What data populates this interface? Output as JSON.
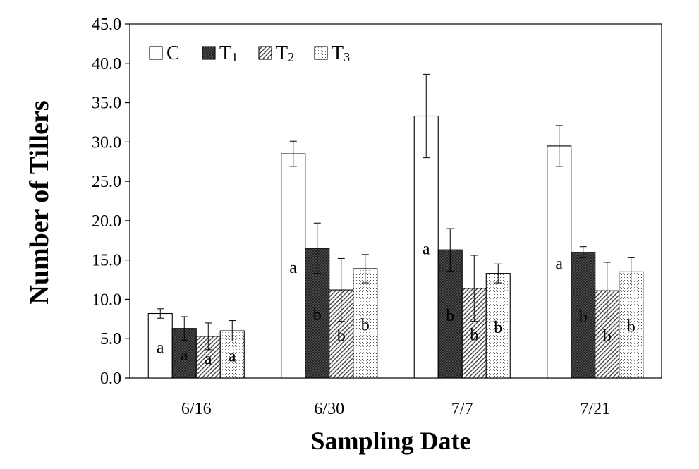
{
  "chart_data": {
    "type": "bar",
    "xlabel": "Sampling Date",
    "ylabel": "Number of Tillers",
    "ylim": [
      0,
      45
    ],
    "yticks": [
      "0.0",
      "5.0",
      "10.0",
      "15.0",
      "20.0",
      "25.0",
      "30.0",
      "35.0",
      "40.0",
      "45.0"
    ],
    "categories": [
      "6/16",
      "6/30",
      "7/7",
      "7/21"
    ],
    "legend_position": "top-left",
    "grid": false,
    "series": [
      {
        "name": "C",
        "sub": "",
        "pattern": "white",
        "values": [
          8.2,
          28.5,
          33.3,
          29.5
        ],
        "errors": [
          0.6,
          1.6,
          5.3,
          2.6
        ],
        "labels": [
          "a",
          "a",
          "a",
          "a"
        ]
      },
      {
        "name": "T",
        "sub": "1",
        "pattern": "dark-crosshatch",
        "values": [
          6.3,
          16.5,
          16.3,
          16.0
        ],
        "errors": [
          1.5,
          3.2,
          2.7,
          0.7
        ],
        "labels": [
          "a",
          "b",
          "b",
          "b"
        ]
      },
      {
        "name": "T",
        "sub": "2",
        "pattern": "diagonal-hatch",
        "values": [
          5.3,
          11.2,
          11.4,
          11.1
        ],
        "errors": [
          1.7,
          4.0,
          4.2,
          3.6
        ],
        "labels": [
          "a",
          "b",
          "b",
          "b"
        ]
      },
      {
        "name": "T",
        "sub": "3",
        "pattern": "dots",
        "values": [
          6.0,
          13.9,
          13.3,
          13.5
        ],
        "errors": [
          1.3,
          1.8,
          1.2,
          1.8
        ],
        "labels": [
          "a",
          "b",
          "b",
          "b"
        ]
      }
    ]
  }
}
